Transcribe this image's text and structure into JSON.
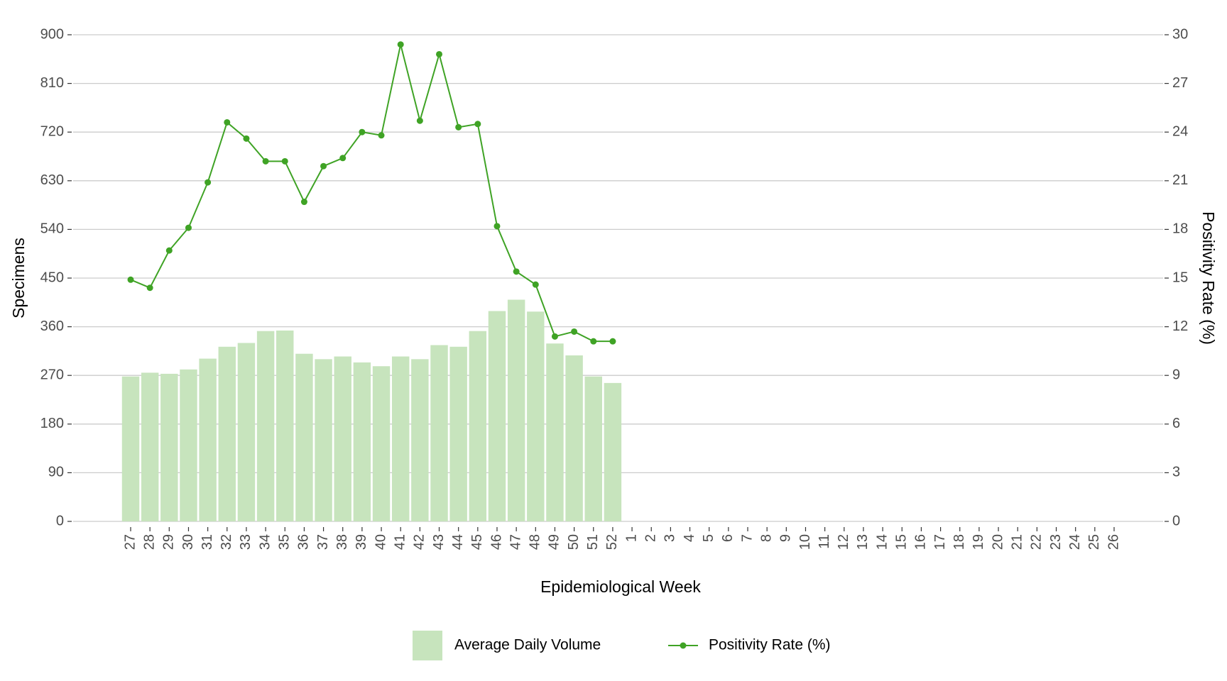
{
  "chart_data": {
    "type": "bar",
    "x_label": "Epidemiological Week",
    "y_label": "Specimens",
    "y2_label": "Positivity Rate (%)",
    "categories": [
      "27",
      "28",
      "29",
      "30",
      "31",
      "32",
      "33",
      "34",
      "35",
      "36",
      "37",
      "38",
      "39",
      "40",
      "41",
      "42",
      "43",
      "44",
      "45",
      "46",
      "47",
      "48",
      "49",
      "50",
      "51",
      "52",
      "1",
      "2",
      "3",
      "4",
      "5",
      "6",
      "7",
      "8",
      "9",
      "10",
      "11",
      "12",
      "13",
      "14",
      "15",
      "16",
      "17",
      "18",
      "19",
      "20",
      "21",
      "22",
      "23",
      "24",
      "25",
      "26"
    ],
    "series": [
      {
        "name": "Average Daily Volume",
        "type": "bar",
        "color": "#c7e4bd",
        "values": [
          268,
          275,
          273,
          281,
          301,
          323,
          330,
          352,
          353,
          310,
          300,
          305,
          294,
          287,
          305,
          300,
          326,
          323,
          352,
          389,
          410,
          388,
          329,
          307,
          268,
          256,
          null,
          null,
          null,
          null,
          null,
          null,
          null,
          null,
          null,
          null,
          null,
          null,
          null,
          null,
          null,
          null,
          null,
          null,
          null,
          null,
          null,
          null,
          null,
          null,
          null,
          null
        ]
      },
      {
        "name": "Positivity Rate (%)",
        "type": "line",
        "axis": "y2",
        "color": "#3fa325",
        "values": [
          14.9,
          14.4,
          16.7,
          18.1,
          20.9,
          24.6,
          23.6,
          22.2,
          22.2,
          19.7,
          21.9,
          22.4,
          24.0,
          23.8,
          29.4,
          24.7,
          28.8,
          24.3,
          24.5,
          18.2,
          15.4,
          14.6,
          11.4,
          11.7,
          11.1,
          11.1,
          null,
          null,
          null,
          null,
          null,
          null,
          null,
          null,
          null,
          null,
          null,
          null,
          null,
          null,
          null,
          null,
          null,
          null,
          null,
          null,
          null,
          null,
          null,
          null,
          null,
          null
        ]
      }
    ],
    "ylim": [
      0,
      900
    ],
    "yticks": [
      0,
      90,
      180,
      270,
      360,
      450,
      540,
      630,
      720,
      810,
      900
    ],
    "y2lim": [
      0,
      30
    ],
    "y2ticks": [
      0,
      3,
      6,
      9,
      12,
      15,
      18,
      21,
      24,
      27,
      30
    ],
    "grid": true,
    "legend": "bottom"
  }
}
